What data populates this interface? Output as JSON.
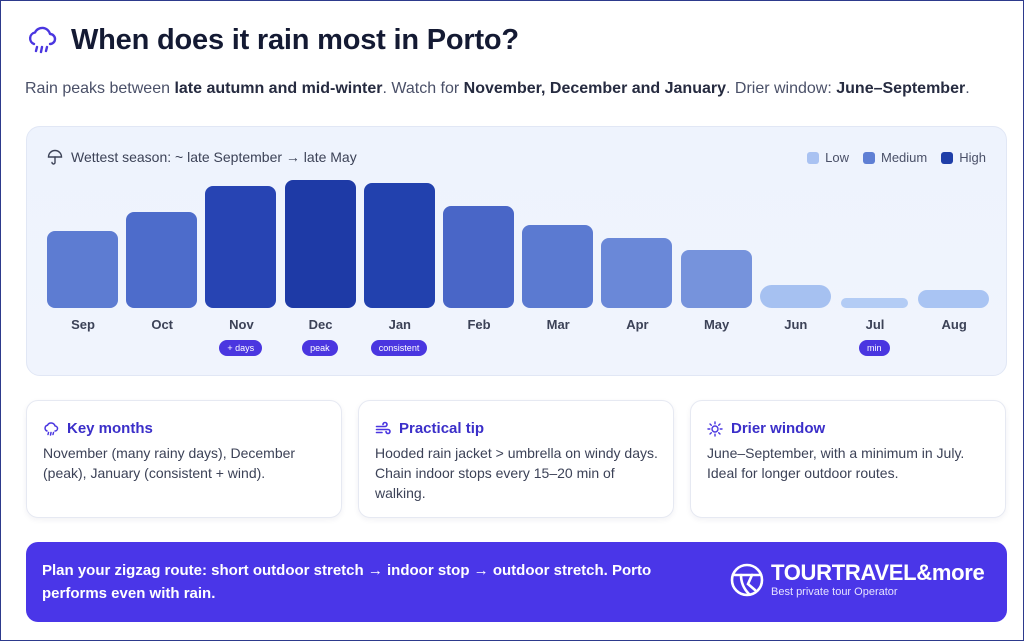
{
  "header": {
    "title": "When does it rain most in Porto?",
    "icon": "rain-cloud-icon"
  },
  "subtitle": {
    "part1": "Rain peaks between ",
    "bold1": "late autumn and mid-winter",
    "part2": ". Watch for ",
    "bold2": "November, December and January",
    "part3": ". Drier window: ",
    "bold3": "June–September",
    "part4": "."
  },
  "chart": {
    "heading": "Wettest season: ~ late September → late May",
    "legend": [
      {
        "label": "Low",
        "color": "#a9c2f2"
      },
      {
        "label": "Medium",
        "color": "#5f7fd4"
      },
      {
        "label": "High",
        "color": "#1f3ea8"
      }
    ]
  },
  "chart_data": {
    "type": "bar",
    "title": "Wettest season: ~ late September → late May",
    "categories": [
      "Sep",
      "Oct",
      "Nov",
      "Dec",
      "Jan",
      "Feb",
      "Mar",
      "Apr",
      "May",
      "Jun",
      "Jul",
      "Aug"
    ],
    "values": [
      60,
      75,
      95,
      100,
      98,
      80,
      65,
      55,
      45,
      18,
      8,
      14
    ],
    "levels": [
      "Medium",
      "Medium",
      "High",
      "High",
      "High",
      "Medium",
      "Medium",
      "Medium",
      "Medium",
      "Low",
      "Low",
      "Low"
    ],
    "colors": [
      "#5d7cd2",
      "#4d6ccb",
      "#2744b3",
      "#1e3aa6",
      "#2241ae",
      "#4966c7",
      "#5b7ad1",
      "#6a88d8",
      "#7693dc",
      "#a6c1f1",
      "#b3ccf5",
      "#a9c4f3"
    ],
    "tags": [
      {
        "month": "Nov",
        "label": "+ days"
      },
      {
        "month": "Dec",
        "label": "peak"
      },
      {
        "month": "Jan",
        "label": "consistent"
      },
      {
        "month": "Jul",
        "label": "min"
      }
    ],
    "ylim": [
      0,
      100
    ],
    "legend": [
      "Low",
      "Medium",
      "High"
    ]
  },
  "cards": [
    {
      "title": "Key months",
      "icon": "rain-cloud-icon",
      "body": "November (many rainy days), December (peak), January (consistent + wind)."
    },
    {
      "title": "Practical tip",
      "icon": "wind-icon",
      "body": "Hooded rain jacket > umbrella on windy days. Chain indoor stops every 15–20 min of walking."
    },
    {
      "title": "Drier window",
      "icon": "sun-icon",
      "body": "June–September, with a minimum in July. Ideal for longer outdoor routes."
    }
  ],
  "banner": {
    "text": "Plan your zigzag route: short outdoor stretch → indoor stop → outdoor stretch. Porto performs even with rain.",
    "brand_name": "TOURTRAVEL&more",
    "brand_tagline": "Best private tour Operator",
    "brand_icon": "globe-logo-icon"
  }
}
